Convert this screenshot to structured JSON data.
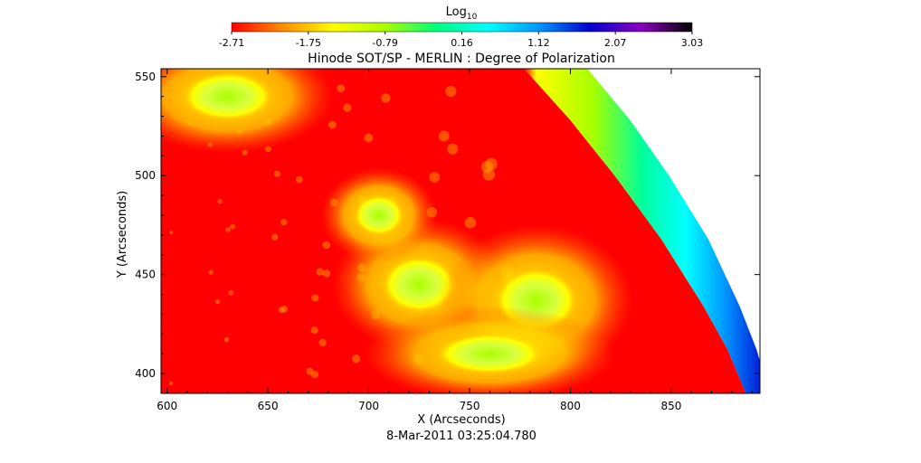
{
  "chart_data": {
    "type": "heatmap",
    "title": "Hinode SOT/SP - MERLIN : Degree of Polarization",
    "xlabel": "X (Arcseconds)",
    "ylabel": "Y (Arcseconds)",
    "footer": "8-Mar-2011 03:25:04.780",
    "xlim": [
      597,
      894
    ],
    "ylim": [
      390,
      554
    ],
    "xticks": [
      600,
      650,
      700,
      750,
      800,
      850
    ],
    "yticks": [
      400,
      450,
      500,
      550
    ],
    "colorbar": {
      "label_base": "Log",
      "label_sub": "10",
      "range": [
        -2.71,
        3.03
      ],
      "ticks": [
        "-2.71",
        "-1.75",
        "-0.79",
        "0.16",
        "1.12",
        "2.07",
        "3.03"
      ],
      "colors": [
        "#ff0000",
        "#ff8c00",
        "#ffff00",
        "#a8ff00",
        "#00ff7a",
        "#00ffff",
        "#0096ff",
        "#0000d0",
        "#8a00c0",
        "#000000"
      ]
    },
    "limb": [
      {
        "x": 777,
        "y": 554
      },
      {
        "x": 800,
        "y": 528
      },
      {
        "x": 822,
        "y": 500
      },
      {
        "x": 845,
        "y": 468
      },
      {
        "x": 866,
        "y": 434
      },
      {
        "x": 878,
        "y": 412
      },
      {
        "x": 887,
        "y": 390
      }
    ],
    "regions": [
      {
        "x": 725,
        "y": 445,
        "rx": 18,
        "ry": 14,
        "value": -0.9
      },
      {
        "x": 783,
        "y": 437,
        "rx": 20,
        "ry": 16,
        "value": -0.8
      },
      {
        "x": 705,
        "y": 480,
        "rx": 12,
        "ry": 10,
        "value": -1.2
      },
      {
        "x": 760,
        "y": 410,
        "rx": 26,
        "ry": 10,
        "value": -1.1
      },
      {
        "x": 630,
        "y": 540,
        "rx": 22,
        "ry": 12,
        "value": -1.6
      }
    ]
  }
}
